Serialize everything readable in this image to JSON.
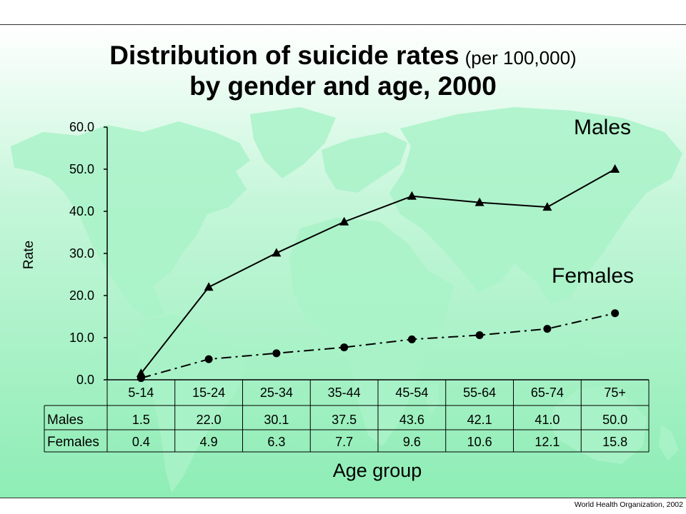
{
  "colors": {
    "background_top": "#ffffff",
    "background_mid": "#c4f6d9",
    "background_bottom": "#8eedb5",
    "map": "#a9f2c8",
    "ink": "#000000"
  },
  "chart_data": {
    "type": "line",
    "title": {
      "line1": "Distribution of suicide rates",
      "line1_units": "(per 100,000)",
      "line2": "by gender and age, 2000"
    },
    "xlabel": "Age group",
    "ylabel": "Rate",
    "ylim": [
      0,
      60
    ],
    "yticks": [
      "0.0",
      "10.0",
      "20.0",
      "30.0",
      "40.0",
      "50.0",
      "60.0"
    ],
    "categories": [
      "5-14",
      "15-24",
      "25-34",
      "35-44",
      "45-54",
      "55-64",
      "65-74",
      "75+"
    ],
    "series": [
      {
        "name": "Males",
        "marker": "triangle",
        "line": "solid",
        "values": [
          1.5,
          22.0,
          30.1,
          37.5,
          43.6,
          42.1,
          41.0,
          50.0
        ]
      },
      {
        "name": "Females",
        "marker": "circle",
        "line": "dash-dot",
        "values": [
          0.4,
          4.9,
          6.3,
          7.7,
          9.6,
          10.6,
          12.1,
          15.8
        ]
      }
    ],
    "data_table": true,
    "grid": false
  },
  "footer": {
    "credit": "World Health Organization, 2002"
  }
}
